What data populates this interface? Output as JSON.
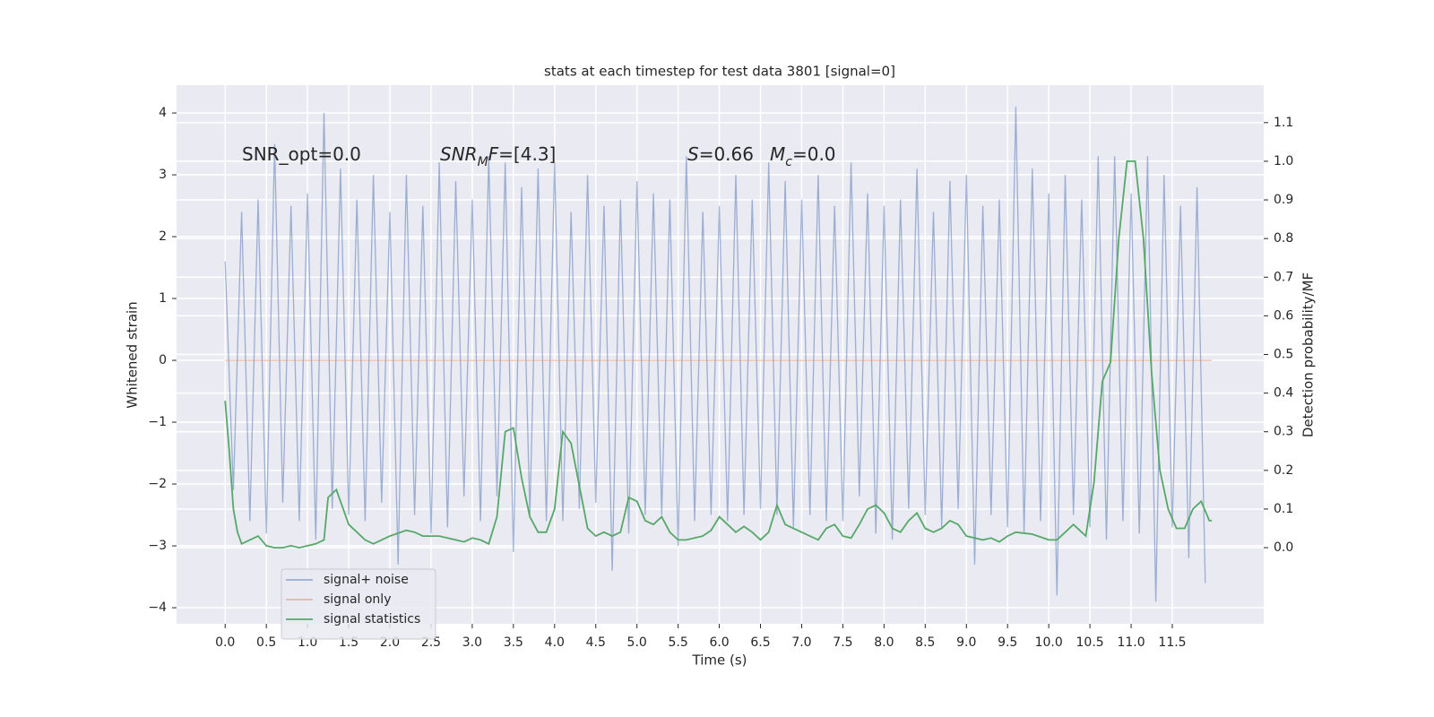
{
  "chart_data": {
    "type": "line",
    "title": "stats at each timestep for test data 3801 [signal=0]",
    "xlabel": "Time (s)",
    "ylabel": "Whitened strain",
    "y2label": "Detection probability/MF",
    "xlim": [
      -0.59,
      12.61
    ],
    "ylim": [
      -4.26,
      4.45
    ],
    "y2lim": [
      -0.197,
      1.197
    ],
    "xticks": [
      {
        "value": 0,
        "label": "0.0"
      },
      {
        "value": 0.5,
        "label": "0.5"
      },
      {
        "value": 1,
        "label": "1.0"
      },
      {
        "value": 1.5,
        "label": "1.5"
      },
      {
        "value": 2,
        "label": "2.0"
      },
      {
        "value": 2.5,
        "label": "2.5"
      },
      {
        "value": 3,
        "label": "3.0"
      },
      {
        "value": 3.5,
        "label": "3.5"
      },
      {
        "value": 4,
        "label": "4.0"
      },
      {
        "value": 4.5,
        "label": "4.5"
      },
      {
        "value": 5,
        "label": "5.0"
      },
      {
        "value": 5.5,
        "label": "5.5"
      },
      {
        "value": 6,
        "label": "6.0"
      },
      {
        "value": 6.5,
        "label": "6.5"
      },
      {
        "value": 7,
        "label": "7.0"
      },
      {
        "value": 7.5,
        "label": "7.5"
      },
      {
        "value": 8,
        "label": "8.0"
      },
      {
        "value": 8.5,
        "label": "8.5"
      },
      {
        "value": 9,
        "label": "9.0"
      },
      {
        "value": 9.5,
        "label": "9.5"
      },
      {
        "value": 10,
        "label": "10.0"
      },
      {
        "value": 10.5,
        "label": "10.5"
      },
      {
        "value": 11,
        "label": "11.0"
      },
      {
        "value": 11.5,
        "label": "11.5"
      }
    ],
    "yticks": [
      {
        "value": -4,
        "label": "−4"
      },
      {
        "value": -3,
        "label": "−3"
      },
      {
        "value": -2,
        "label": "−2"
      },
      {
        "value": -1,
        "label": "−1"
      },
      0,
      1,
      2,
      3,
      4
    ],
    "y2ticks": [
      {
        "value": 0,
        "label": "0.0"
      },
      {
        "value": 0.1,
        "label": "0.1"
      },
      {
        "value": 0.2,
        "label": "0.2"
      },
      {
        "value": 0.3,
        "label": "0.3"
      },
      {
        "value": 0.4,
        "label": "0.4"
      },
      {
        "value": 0.5,
        "label": "0.5"
      },
      {
        "value": 0.6,
        "label": "0.6"
      },
      {
        "value": 0.7,
        "label": "0.7"
      },
      {
        "value": 0.8,
        "label": "0.8"
      },
      {
        "value": 0.9,
        "label": "0.9"
      },
      {
        "value": 1,
        "label": "1.0"
      },
      {
        "value": 1.1,
        "label": "1.1"
      }
    ],
    "grid": true,
    "legend": "lower left",
    "annotations": [
      {
        "parts": [
          {
            "text": "SNR_opt=0.0"
          }
        ]
      },
      {
        "parts": [
          {
            "text": "SNR",
            "italic": true
          },
          {
            "text": "M",
            "italic": true,
            "sub": true
          },
          {
            "text": "F",
            "italic": true
          },
          {
            "text": "=[4.3]"
          }
        ]
      },
      {
        "parts": [
          {
            "text": "S",
            "italic": true
          },
          {
            "text": "=0.66"
          }
        ]
      },
      {
        "parts": [
          {
            "text": "M",
            "italic": true
          },
          {
            "text": "c",
            "italic": true,
            "sub": true
          },
          {
            "text": "=0.0"
          }
        ]
      }
    ],
    "series": [
      {
        "name": "signal+ noise",
        "color": "#4c72b0",
        "opacity": 0.5,
        "x": [
          0.0,
          0.1,
          0.2,
          0.3,
          0.4,
          0.5,
          0.6,
          0.7,
          0.8,
          0.9,
          1.0,
          1.1,
          1.2,
          1.3,
          1.4,
          1.5,
          1.6,
          1.7,
          1.8,
          1.9,
          2.0,
          2.1,
          2.2,
          2.3,
          2.4,
          2.5,
          2.6,
          2.7,
          2.8,
          2.9,
          3.0,
          3.1,
          3.2,
          3.3,
          3.4,
          3.5,
          3.6,
          3.7,
          3.8,
          3.9,
          4.0,
          4.1,
          4.2,
          4.3,
          4.4,
          4.5,
          4.6,
          4.7,
          4.8,
          4.9,
          5.0,
          5.1,
          5.2,
          5.3,
          5.4,
          5.5,
          5.6,
          5.7,
          5.8,
          5.9,
          6.0,
          6.1,
          6.2,
          6.3,
          6.4,
          6.5,
          6.6,
          6.7,
          6.8,
          6.9,
          7.0,
          7.1,
          7.2,
          7.3,
          7.4,
          7.5,
          7.6,
          7.7,
          7.8,
          7.9,
          8.0,
          8.1,
          8.2,
          8.3,
          8.4,
          8.5,
          8.6,
          8.7,
          8.8,
          8.9,
          9.0,
          9.1,
          9.2,
          9.3,
          9.4,
          9.5,
          9.6,
          9.7,
          9.8,
          9.9,
          10.0,
          10.1,
          10.2,
          10.3,
          10.4,
          10.5,
          10.6,
          10.7,
          10.8,
          10.9,
          11.0,
          11.1,
          11.2,
          11.3,
          11.4,
          11.5,
          11.6,
          11.7,
          11.8,
          11.9
        ],
        "values": [
          1.6,
          -2.1,
          2.4,
          -2.6,
          2.6,
          -2.8,
          3.5,
          -2.3,
          2.5,
          -2.6,
          2.7,
          -2.9,
          4.0,
          -2.4,
          3.1,
          -2.5,
          2.6,
          -2.6,
          3.0,
          -2.3,
          2.4,
          -3.3,
          3.0,
          -2.5,
          2.5,
          -2.8,
          3.2,
          -2.7,
          2.9,
          -2.2,
          2.6,
          -2.6,
          3.3,
          -2.2,
          3.2,
          -3.1,
          2.8,
          -2.5,
          3.1,
          -2.6,
          3.2,
          -2.6,
          2.4,
          -2.4,
          3.0,
          -2.3,
          2.5,
          -3.4,
          2.6,
          -2.8,
          2.9,
          -2.5,
          2.7,
          -2.5,
          2.6,
          -3.0,
          3.3,
          -2.6,
          2.4,
          -2.5,
          2.5,
          -2.6,
          3.0,
          -2.5,
          2.6,
          -2.4,
          3.2,
          -2.5,
          2.9,
          -2.7,
          2.6,
          -2.5,
          3.0,
          -2.6,
          2.5,
          -2.6,
          3.2,
          -2.2,
          2.7,
          -2.8,
          2.5,
          -2.9,
          2.6,
          -2.4,
          3.1,
          -2.5,
          2.4,
          -2.7,
          2.9,
          -2.4,
          3.0,
          -3.3,
          2.5,
          -2.5,
          2.6,
          -2.7,
          4.1,
          -2.8,
          3.1,
          -2.6,
          2.7,
          -3.8,
          3.0,
          -2.5,
          2.6,
          -2.7,
          3.3,
          -2.9,
          3.3,
          -2.6,
          2.7,
          -2.8,
          3.3,
          -3.9,
          3.0,
          -2.7,
          2.5,
          -3.2,
          2.8,
          -3.6
        ]
      },
      {
        "name": "signal only",
        "color": "#dd8452",
        "opacity": 0.5,
        "x": [
          0,
          11.98
        ],
        "values": [
          0,
          0
        ]
      },
      {
        "name": "signal statistics",
        "color": "#55a868",
        "axis": "y2",
        "x": [
          0.0,
          0.05,
          0.1,
          0.15,
          0.2,
          0.3,
          0.4,
          0.5,
          0.6,
          0.7,
          0.8,
          0.9,
          1.0,
          1.1,
          1.2,
          1.25,
          1.35,
          1.45,
          1.5,
          1.7,
          1.8,
          2.0,
          2.2,
          2.3,
          2.4,
          2.6,
          2.8,
          2.9,
          3.0,
          3.1,
          3.2,
          3.3,
          3.4,
          3.5,
          3.6,
          3.7,
          3.8,
          3.9,
          4.0,
          4.1,
          4.2,
          4.3,
          4.4,
          4.5,
          4.6,
          4.7,
          4.8,
          4.9,
          5.0,
          5.1,
          5.2,
          5.3,
          5.4,
          5.5,
          5.6,
          5.8,
          5.9,
          6.0,
          6.1,
          6.2,
          6.3,
          6.4,
          6.5,
          6.6,
          6.7,
          6.8,
          7.0,
          7.2,
          7.3,
          7.4,
          7.5,
          7.6,
          7.7,
          7.8,
          7.9,
          8.0,
          8.1,
          8.2,
          8.3,
          8.4,
          8.5,
          8.6,
          8.7,
          8.8,
          8.9,
          9.0,
          9.2,
          9.3,
          9.4,
          9.5,
          9.6,
          9.8,
          10.0,
          10.1,
          10.2,
          10.3,
          10.4,
          10.45,
          10.55,
          10.65,
          10.75,
          10.85,
          10.95,
          11.05,
          11.15,
          11.25,
          11.35,
          11.45,
          11.55,
          11.65,
          11.75,
          11.85,
          11.95,
          11.98
        ],
        "values": [
          0.38,
          0.25,
          0.1,
          0.04,
          0.01,
          0.02,
          0.03,
          0.005,
          0,
          0,
          0.005,
          0,
          0.005,
          0.01,
          0.02,
          0.13,
          0.15,
          0.09,
          0.06,
          0.02,
          0.01,
          0.03,
          0.045,
          0.04,
          0.03,
          0.03,
          0.02,
          0.015,
          0.025,
          0.02,
          0.01,
          0.08,
          0.3,
          0.31,
          0.18,
          0.08,
          0.04,
          0.04,
          0.1,
          0.3,
          0.27,
          0.16,
          0.05,
          0.03,
          0.04,
          0.03,
          0.04,
          0.13,
          0.12,
          0.07,
          0.06,
          0.08,
          0.04,
          0.02,
          0.02,
          0.03,
          0.045,
          0.08,
          0.06,
          0.04,
          0.055,
          0.04,
          0.02,
          0.04,
          0.11,
          0.06,
          0.04,
          0.02,
          0.05,
          0.06,
          0.03,
          0.025,
          0.06,
          0.1,
          0.11,
          0.09,
          0.05,
          0.04,
          0.07,
          0.09,
          0.05,
          0.04,
          0.05,
          0.07,
          0.06,
          0.03,
          0.02,
          0.025,
          0.015,
          0.03,
          0.04,
          0.035,
          0.02,
          0.02,
          0.04,
          0.06,
          0.04,
          0.03,
          0.17,
          0.43,
          0.48,
          0.8,
          1.0,
          1.0,
          0.8,
          0.45,
          0.2,
          0.1,
          0.05,
          0.05,
          0.1,
          0.12,
          0.07,
          0.07
        ]
      }
    ]
  }
}
